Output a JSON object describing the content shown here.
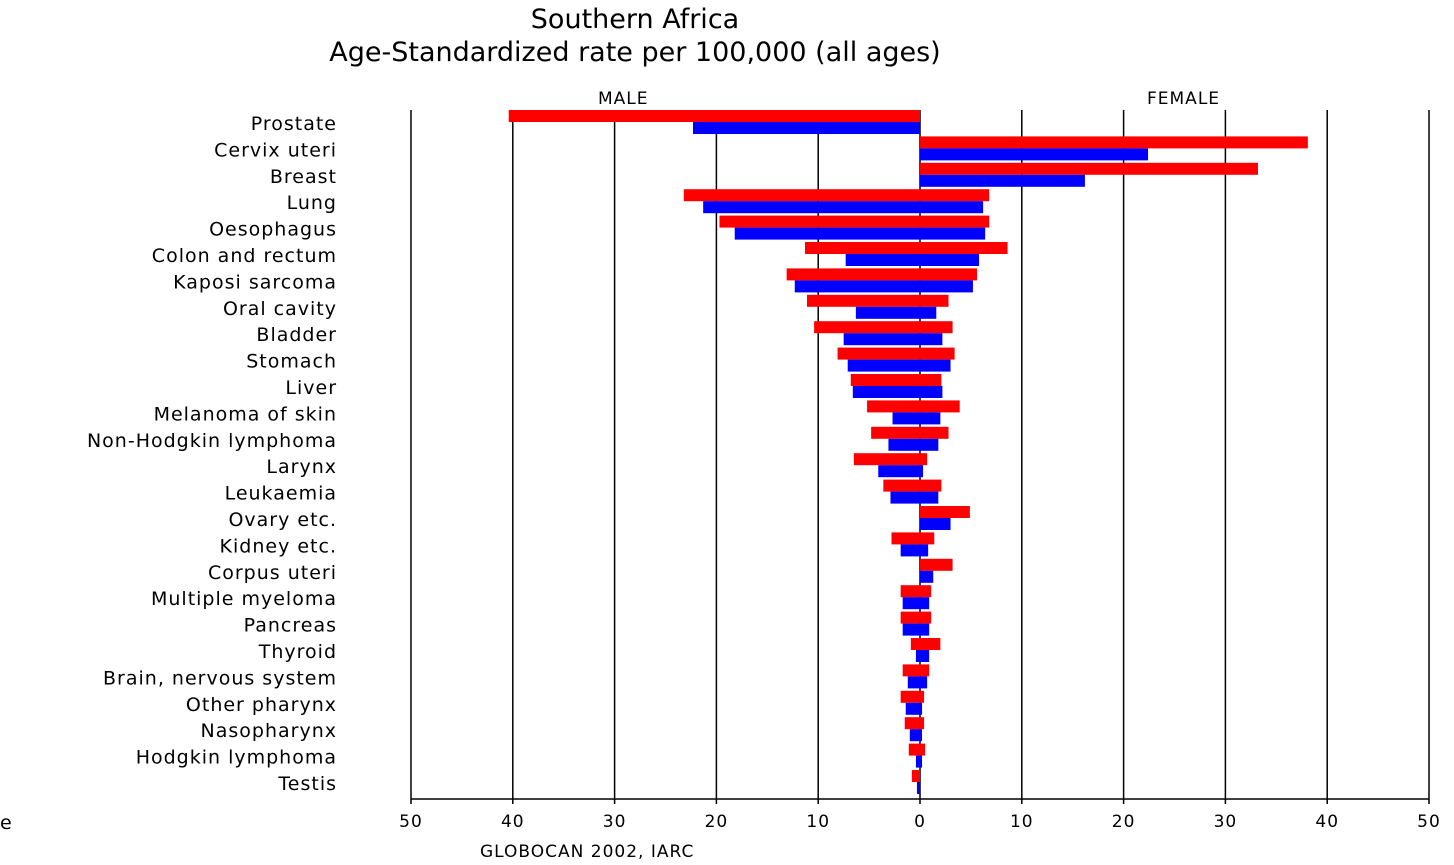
{
  "chart_data": {
    "type": "bar",
    "orientation": "horizontal",
    "title": "Southern Africa",
    "subtitle": "Age-Standardized rate per 100,000 (all ages)",
    "panels": {
      "left": "MALE",
      "right": "FEMALE"
    },
    "source": "GLOBOCAN 2002, IARC",
    "edge_text": "e",
    "xlim": [
      -50,
      50
    ],
    "x_ticks": [
      -50,
      -40,
      -30,
      -20,
      -10,
      0,
      10,
      20,
      30,
      40,
      50
    ],
    "x_tick_labels": [
      "50",
      "40",
      "30",
      "20",
      "10",
      "0",
      "10",
      "20",
      "30",
      "40",
      "50"
    ],
    "grid": true,
    "colors": {
      "incidence": "#ff0000",
      "mortality": "#0000ff"
    },
    "categories": [
      "Prostate",
      "Cervix uteri",
      "Breast",
      "Lung",
      "Oesophagus",
      "Colon and rectum",
      "Kaposi sarcoma",
      "Oral cavity",
      "Bladder",
      "Stomach",
      "Liver",
      "Melanoma of skin",
      "Non-Hodgkin lymphoma",
      "Larynx",
      "Leukaemia",
      "Ovary etc.",
      "Kidney etc.",
      "Corpus uteri",
      "Multiple myeloma",
      "Pancreas",
      "Thyroid",
      "Brain, nervous system",
      "Other pharynx",
      "Nasopharynx",
      "Hodgkin lymphoma",
      "Testis"
    ],
    "series": [
      {
        "values": [
          40.4,
          0,
          0,
          23.2,
          19.7,
          11.3,
          13.1,
          11.1,
          10.4,
          8.1,
          6.8,
          5.2,
          4.8,
          6.5,
          3.6,
          0,
          2.8,
          0,
          1.9,
          1.9,
          0.9,
          1.7,
          1.9,
          1.5,
          1.1,
          0.8
        ],
        "sex": "male",
        "measure": "incidence"
      },
      {
        "values": [
          22.3,
          0,
          0,
          21.3,
          18.2,
          7.3,
          12.3,
          6.3,
          7.5,
          7.1,
          6.6,
          2.7,
          3.1,
          4.1,
          2.9,
          0,
          1.9,
          0,
          1.7,
          1.7,
          0.4,
          1.2,
          1.4,
          1.0,
          0.4,
          0.3
        ],
        "sex": "male",
        "measure": "mortality"
      },
      {
        "values": [
          0,
          38.1,
          33.2,
          6.8,
          6.8,
          8.6,
          5.6,
          2.8,
          3.2,
          3.4,
          2.1,
          3.9,
          2.8,
          0.7,
          2.1,
          4.9,
          1.4,
          3.2,
          1.1,
          1.1,
          2.0,
          0.9,
          0.4,
          0.4,
          0.5,
          0
        ],
        "sex": "female",
        "measure": "incidence"
      },
      {
        "values": [
          0,
          22.4,
          16.2,
          6.2,
          6.4,
          5.8,
          5.2,
          1.6,
          2.2,
          3.0,
          2.2,
          2.0,
          1.8,
          0.3,
          1.8,
          3.0,
          0.8,
          1.3,
          0.9,
          0.9,
          0.9,
          0.7,
          0.2,
          0.2,
          0.2,
          0
        ],
        "sex": "female",
        "measure": "mortality"
      }
    ]
  }
}
